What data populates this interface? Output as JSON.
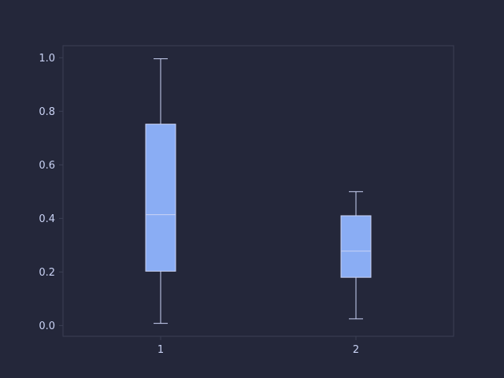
{
  "colors": {
    "background": "#24273a",
    "axes_frame": "#3b3f54",
    "tick_text": "#cad3f5",
    "box_fill": "#8aadf4",
    "box_edge": "#cad3f5",
    "median": "#cad3f5",
    "whisker": "#cad3f5"
  },
  "chart_data": {
    "type": "box",
    "title": "",
    "xlabel": "",
    "ylabel": "",
    "categories": [
      "1",
      "2"
    ],
    "ylim": [
      -0.04,
      1.045
    ],
    "yticks": [
      "0.0",
      "0.2",
      "0.4",
      "0.6",
      "0.8",
      "1.0"
    ],
    "yticks_values": [
      0.0,
      0.2,
      0.4,
      0.6,
      0.8,
      1.0
    ],
    "series": [
      {
        "name": "1",
        "whisker_low": 0.008,
        "q1": 0.203,
        "median": 0.414,
        "q3": 0.752,
        "whisker_high": 0.996
      },
      {
        "name": "2",
        "whisker_low": 0.025,
        "q1": 0.18,
        "median": 0.278,
        "q3": 0.41,
        "whisker_high": 0.5
      }
    ],
    "grid": false,
    "legend": "none"
  }
}
